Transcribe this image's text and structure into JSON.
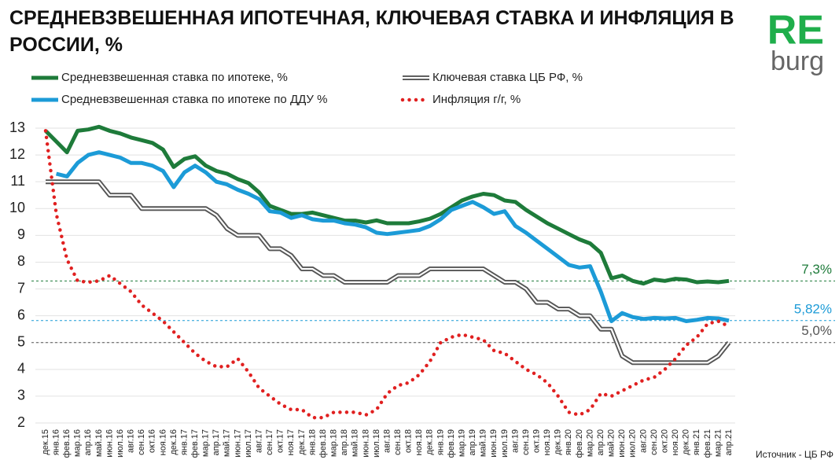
{
  "chart_data": {
    "type": "line",
    "title": "СРЕДНЕВЗВЕШЕННАЯ ИПОТЕЧНАЯ, КЛЮЧЕВАЯ СТАВКА И ИНФЛЯЦИЯ В РОССИИ, %",
    "logo": {
      "top": "RE",
      "bottom": "burg"
    },
    "source": "Источник  - ЦБ РФ",
    "categories": [
      "дек.15",
      "янв.16",
      "фев.16",
      "мар.16",
      "апр.16",
      "май.16",
      "июн.16",
      "июл.16",
      "авг.16",
      "сен.16",
      "окт.16",
      "ноя.16",
      "дек.16",
      "янв.17",
      "фев.17",
      "мар.17",
      "апр.17",
      "май.17",
      "июн.17",
      "июл.17",
      "авг.17",
      "сен.17",
      "окт.17",
      "ноя.17",
      "дек.17",
      "янв.18",
      "фев.18",
      "мар.18",
      "апр.18",
      "май.18",
      "июн.18",
      "июл.18",
      "авг.18",
      "сен.18",
      "окт.18",
      "ноя.18",
      "дек.18",
      "янв.19",
      "фев.19",
      "мар.19",
      "апр.19",
      "май.19",
      "июн.19",
      "июл.19",
      "авг.19",
      "сен.19",
      "окт.19",
      "ноя.19",
      "дек.19",
      "янв.20",
      "фев.20",
      "мар.20",
      "апр.20",
      "май.20",
      "июн.20",
      "июл.20",
      "авг.20",
      "сен.20",
      "окт.20",
      "ноя.20",
      "дек.20",
      "янв.21",
      "фев.21",
      "мар.21",
      "апр.21"
    ],
    "series": [
      {
        "name": "Средневзвешенная ставка по ипотеке, %",
        "color": "#1e7b3a",
        "line_style": "solid",
        "values": [
          12.9,
          12.5,
          12.1,
          12.9,
          12.95,
          13.05,
          12.9,
          12.8,
          12.65,
          12.55,
          12.45,
          12.2,
          11.55,
          11.85,
          11.95,
          11.6,
          11.4,
          11.3,
          11.1,
          10.95,
          10.6,
          10.1,
          9.95,
          9.8,
          9.8,
          9.85,
          9.75,
          9.65,
          9.55,
          9.55,
          9.48,
          9.56,
          9.45,
          9.45,
          9.45,
          9.52,
          9.62,
          9.8,
          10.05,
          10.3,
          10.45,
          10.55,
          10.5,
          10.3,
          10.25,
          9.95,
          9.7,
          9.45,
          9.25,
          9.05,
          8.85,
          8.7,
          8.35,
          7.4,
          7.5,
          7.3,
          7.2,
          7.35,
          7.3,
          7.38,
          7.35,
          7.25,
          7.28,
          7.25,
          7.3
        ]
      },
      {
        "name": "Ключевая ставка ЦБ РФ, %",
        "color": "#555555",
        "line_style": "double",
        "values": [
          11,
          11,
          11,
          11,
          11,
          11,
          10.5,
          10.5,
          10.5,
          10,
          10,
          10,
          10,
          10,
          10,
          10,
          9.75,
          9.25,
          9,
          9,
          9,
          8.5,
          8.5,
          8.25,
          7.75,
          7.75,
          7.5,
          7.5,
          7.25,
          7.25,
          7.25,
          7.25,
          7.25,
          7.5,
          7.5,
          7.5,
          7.75,
          7.75,
          7.75,
          7.75,
          7.75,
          7.75,
          7.5,
          7.25,
          7.25,
          7,
          6.5,
          6.5,
          6.25,
          6.25,
          6,
          6,
          5.5,
          5.5,
          4.5,
          4.25,
          4.25,
          4.25,
          4.25,
          4.25,
          4.25,
          4.25,
          4.25,
          4.5,
          5
        ]
      },
      {
        "name": "Средневзвешенная ставка по ипотеке по ДДУ %",
        "color": "#1c9bd7",
        "line_style": "solid",
        "values": [
          null,
          11.3,
          11.2,
          11.7,
          12.0,
          12.1,
          12.0,
          11.9,
          11.7,
          11.7,
          11.6,
          11.4,
          10.8,
          11.35,
          11.6,
          11.35,
          11.0,
          10.9,
          10.7,
          10.55,
          10.35,
          9.9,
          9.85,
          9.65,
          9.75,
          9.6,
          9.55,
          9.55,
          9.45,
          9.4,
          9.3,
          9.1,
          9.05,
          9.1,
          9.15,
          9.2,
          9.35,
          9.6,
          9.95,
          10.1,
          10.25,
          10.05,
          9.8,
          9.9,
          9.35,
          9.1,
          8.8,
          8.5,
          8.2,
          7.9,
          7.8,
          7.85,
          6.9,
          5.8,
          6.1,
          5.95,
          5.88,
          5.92,
          5.9,
          5.92,
          5.8,
          5.85,
          5.92,
          5.9,
          5.82
        ]
      },
      {
        "name": "Инфляция г/г,  %",
        "color": "#e02020",
        "line_style": "dotted",
        "values": [
          12.9,
          9.8,
          8.1,
          7.3,
          7.25,
          7.3,
          7.5,
          7.2,
          6.9,
          6.4,
          6.1,
          5.8,
          5.4,
          5.0,
          4.6,
          4.3,
          4.1,
          4.1,
          4.4,
          3.9,
          3.3,
          3.0,
          2.7,
          2.5,
          2.5,
          2.2,
          2.2,
          2.4,
          2.4,
          2.4,
          2.3,
          2.5,
          3.1,
          3.4,
          3.5,
          3.8,
          4.3,
          5.0,
          5.2,
          5.3,
          5.2,
          5.1,
          4.7,
          4.6,
          4.3,
          4.0,
          3.8,
          3.5,
          3.0,
          2.4,
          2.3,
          2.5,
          3.1,
          3.0,
          3.2,
          3.4,
          3.6,
          3.7,
          4.0,
          4.4,
          4.9,
          5.2,
          5.7,
          5.8,
          5.6
        ]
      }
    ],
    "annotations": [
      {
        "value": 7.3,
        "label": "7,3%",
        "color": "#1e7b3a"
      },
      {
        "value": 5.82,
        "label": "5,82%",
        "color": "#1c9bd7"
      },
      {
        "value": 5,
        "label": "5,0%",
        "color": "#555555"
      }
    ],
    "ylim": [
      2,
      13
    ],
    "yticks": [
      2,
      3,
      4,
      5,
      6,
      7,
      8,
      9,
      10,
      11,
      12,
      13
    ],
    "grid": true
  }
}
